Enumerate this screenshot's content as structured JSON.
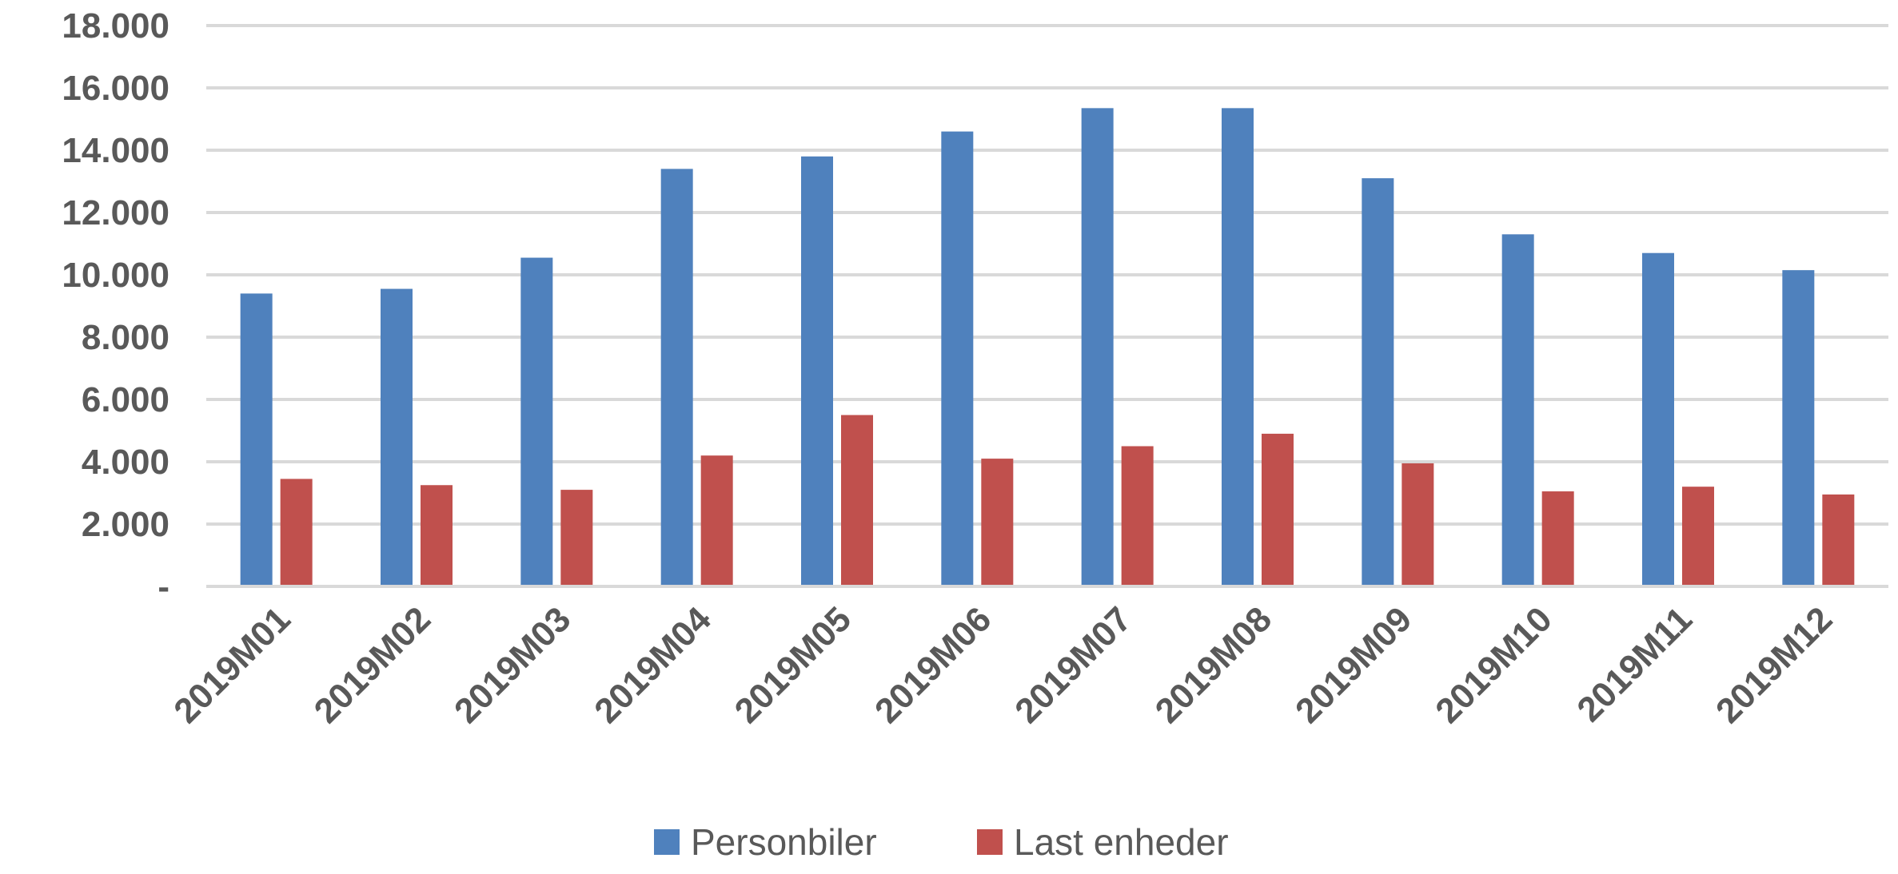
{
  "chart_data": {
    "type": "bar",
    "title": "",
    "xlabel": "",
    "ylabel": "",
    "categories": [
      "2019M01",
      "2019M02",
      "2019M03",
      "2019M04",
      "2019M05",
      "2019M06",
      "2019M07",
      "2019M08",
      "2019M09",
      "2019M10",
      "2019M11",
      "2019M12"
    ],
    "series": [
      {
        "name": "Personbiler",
        "color": "#4F81BD",
        "values": [
          9400,
          9550,
          10550,
          13400,
          13800,
          14600,
          15350,
          15350,
          13100,
          11300,
          10700,
          10150
        ]
      },
      {
        "name": "Last enheder",
        "color": "#C0504D",
        "values": [
          3450,
          3250,
          3100,
          4200,
          5500,
          4100,
          4500,
          4900,
          3950,
          3050,
          3200,
          2950
        ]
      }
    ],
    "ylim": [
      0,
      18000
    ],
    "yticks": [
      0,
      2000,
      4000,
      6000,
      8000,
      10000,
      12000,
      14000,
      16000,
      18000
    ],
    "ytick_labels": [
      "-",
      "2.000",
      "4.000",
      "6.000",
      "8.000",
      "10.000",
      "12.000",
      "14.000",
      "16.000",
      "18.000"
    ],
    "grid": true,
    "legend_position": "bottom"
  }
}
